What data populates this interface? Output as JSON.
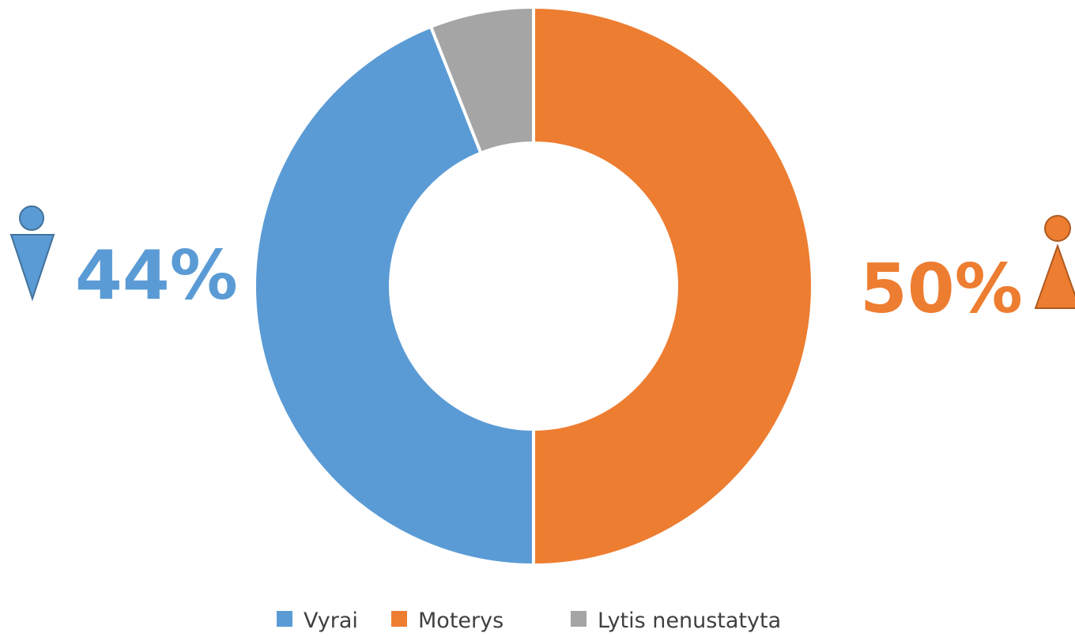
{
  "chart_data": {
    "type": "donut",
    "categories": [
      "Vyrai",
      "Moterys",
      "Lytis nenustatyta"
    ],
    "values": [
      44,
      50,
      6
    ],
    "value_labels": [
      "44%",
      "50%",
      null
    ],
    "colors": [
      "#5b9bd5",
      "#ed7d31",
      "#a5a5a5"
    ],
    "legend": "bottom"
  }
}
